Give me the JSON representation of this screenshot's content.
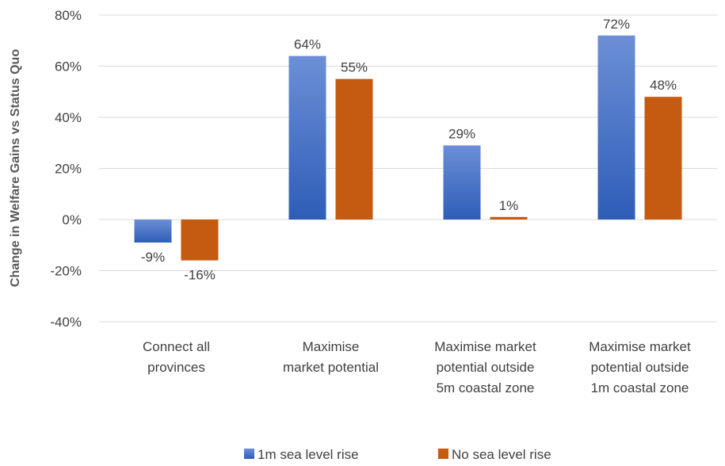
{
  "chart_data": {
    "type": "bar",
    "title": "",
    "xlabel": "",
    "ylabel": "Change in Welfare Gains vs Status Quo",
    "categories": [
      [
        "Connect all",
        "provinces"
      ],
      [
        "Maximise",
        "market potential"
      ],
      [
        "Maximise market",
        "potential outside",
        "5m coastal zone"
      ],
      [
        "Maximise market",
        "potential outside",
        "1m coastal zone"
      ]
    ],
    "series": [
      {
        "name": "1m sea level rise",
        "values": [
          -9,
          64,
          29,
          72
        ],
        "labels": [
          "-9%",
          "64%",
          "29%",
          "72%"
        ],
        "color": "#4472C4"
      },
      {
        "name": "No sea level rise",
        "values": [
          -16,
          55,
          1,
          48
        ],
        "labels": [
          "-16%",
          "55%",
          "1%",
          "48%"
        ],
        "color": "#C55A11"
      }
    ],
    "ylim": [
      -40,
      80
    ],
    "yticks": [
      -40,
      -20,
      0,
      20,
      40,
      60,
      80
    ],
    "ytick_labels": [
      "-40%",
      "-20%",
      "0%",
      "20%",
      "40%",
      "60%",
      "80%"
    ],
    "grid": true,
    "legend_position": "bottom"
  }
}
